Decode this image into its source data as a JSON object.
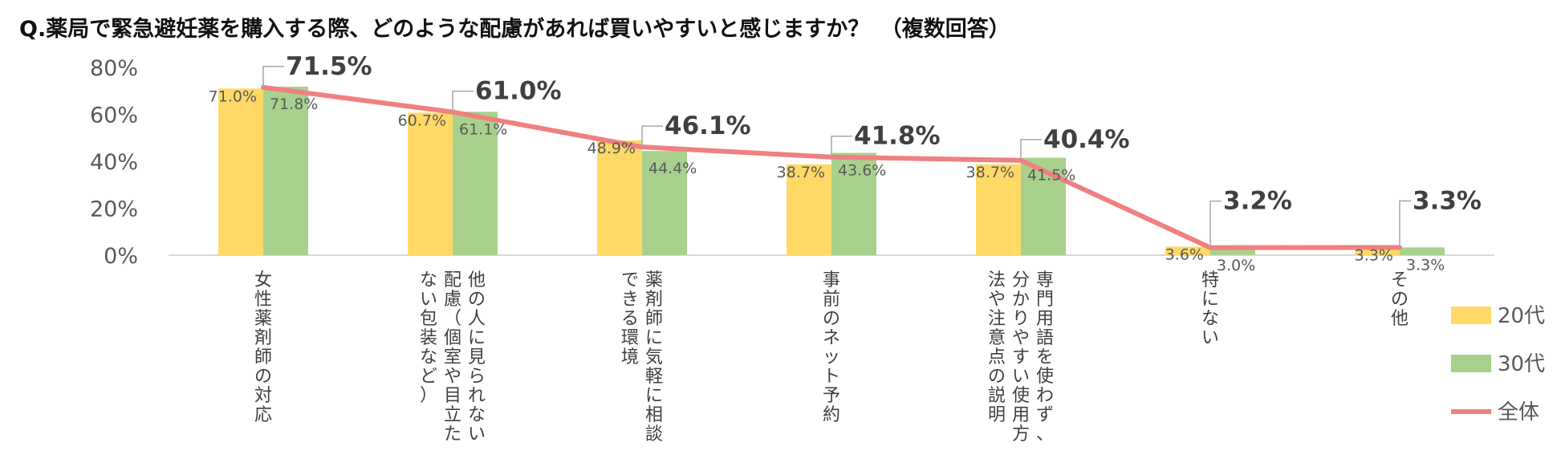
{
  "title": "Q.薬局で緊急避妊薬を購入する際、どのような配慮があれば買いやすいと感じますか？　（複数回答）",
  "chart_data": {
    "type": "bar",
    "title": "Q.薬局で緊急避妊薬を購入する際、どのような配慮があれば買いやすいと感じますか？　（複数回答）",
    "categories": [
      [
        "女性薬剤師の対応"
      ],
      [
        "他の人に見られない",
        "配慮（個室や目立た",
        "ない包装など）"
      ],
      [
        "薬剤師に気軽に相談",
        "できる環境"
      ],
      [
        "事前のネット予約"
      ],
      [
        "専門用語を使わず、",
        "分かりやすい使用方",
        "法や注意点の説明"
      ],
      [
        "特にない"
      ],
      [
        "その他"
      ]
    ],
    "series": [
      {
        "name": "20代",
        "type": "bar",
        "color": "#FFD966",
        "values": [
          71.0,
          60.7,
          48.9,
          38.7,
          38.7,
          3.6,
          3.3
        ],
        "labels": [
          "71.0%",
          "60.7%",
          "48.9%",
          "38.7%",
          "38.7%",
          "3.6%",
          "3.3%"
        ]
      },
      {
        "name": "30代",
        "type": "bar",
        "color": "#A9D18E",
        "values": [
          71.8,
          61.1,
          44.4,
          43.6,
          41.5,
          3.0,
          3.3
        ],
        "labels": [
          "71.8%",
          "61.1%",
          "44.4%",
          "43.6%",
          "41.5%",
          "3.0%",
          "3.3%"
        ]
      },
      {
        "name": "全体",
        "type": "line",
        "color": "#F08080",
        "values": [
          71.5,
          61.0,
          46.1,
          41.8,
          40.4,
          3.2,
          3.3
        ],
        "labels": [
          "71.5%",
          "61.0%",
          "46.1%",
          "41.8%",
          "40.4%",
          "3.2%",
          "3.3%"
        ]
      }
    ],
    "yticks": [
      "0%",
      "20%",
      "40%",
      "60%",
      "80%"
    ],
    "ylim": [
      0,
      80
    ],
    "xlabel": "",
    "ylabel": "",
    "legend": "right",
    "grid": false
  }
}
